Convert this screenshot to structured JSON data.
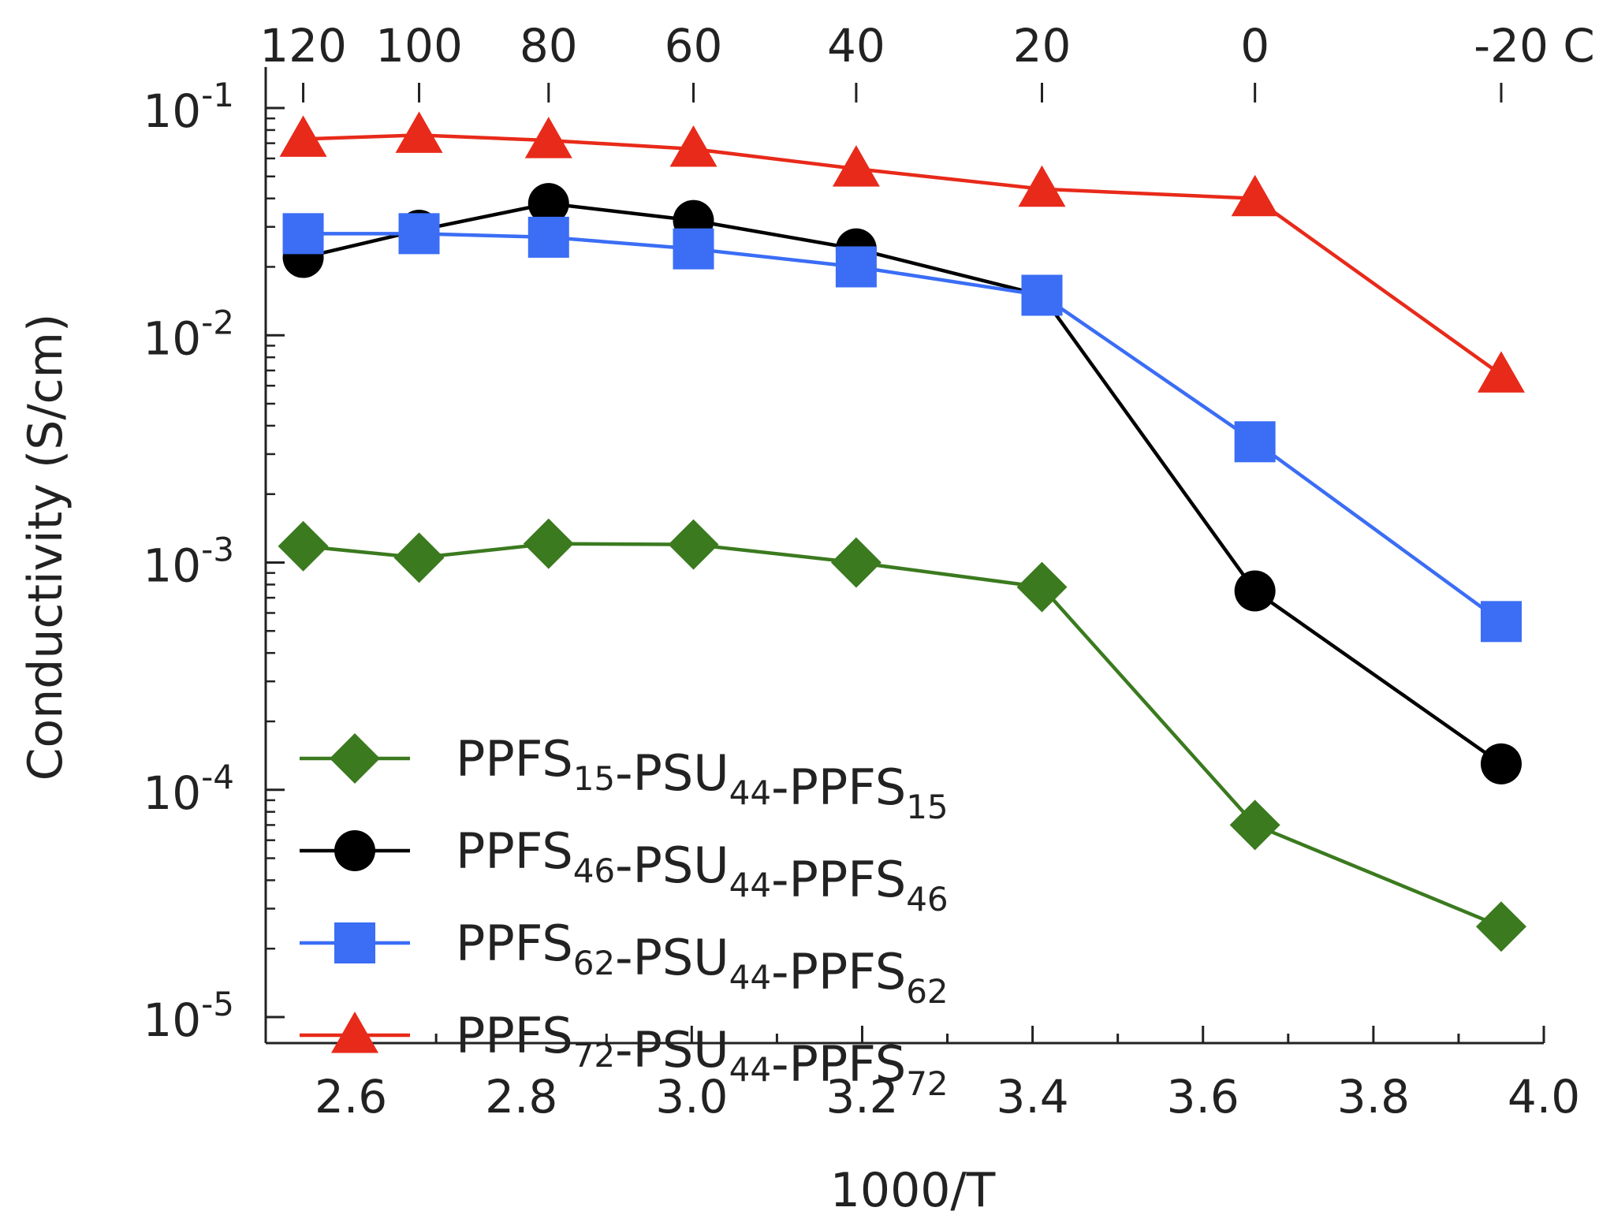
{
  "chart_data": {
    "type": "line",
    "xlabel": "1000/T",
    "ylabel": "Conductivity (S/cm)",
    "y_scale": "log",
    "xlim": [
      2.5,
      4.0
    ],
    "ylim": [
      1e-05,
      0.1
    ],
    "x_ticks": [
      "2.6",
      "2.8",
      "3.0",
      "3.2",
      "3.4",
      "3.6",
      "3.8",
      "4.0"
    ],
    "y_ticks": [
      {
        "base": "10",
        "exp": "-1",
        "value": 0.1
      },
      {
        "base": "10",
        "exp": "-2",
        "value": 0.01
      },
      {
        "base": "10",
        "exp": "-3",
        "value": 0.001
      },
      {
        "base": "10",
        "exp": "-4",
        "value": 0.0001
      },
      {
        "base": "10",
        "exp": "-5",
        "value": 1e-05
      }
    ],
    "top_ticks": [
      {
        "label": "120",
        "x": 2.544
      },
      {
        "label": "100",
        "x": 2.68
      },
      {
        "label": "80",
        "x": 2.832
      },
      {
        "label": "60",
        "x": 3.002
      },
      {
        "label": "40",
        "x": 3.193
      },
      {
        "label": "20",
        "x": 3.411
      },
      {
        "label": "0",
        "x": 3.661
      },
      {
        "label": "-20 C",
        "x": 3.95
      }
    ],
    "grid": false,
    "legend_position": "bottom-left",
    "series": [
      {
        "name": "PPFS15-PSU44-PPFS15",
        "label_parts": [
          [
            "PPFS",
            "15"
          ],
          [
            "-PSU",
            "44"
          ],
          [
            "-PPFS",
            "15"
          ]
        ],
        "color": "#3b7a1f",
        "marker": "diamond",
        "x": [
          2.544,
          2.68,
          2.832,
          3.002,
          3.193,
          3.411,
          3.661,
          3.95
        ],
        "y": [
          0.00118,
          0.00105,
          0.00121,
          0.0012,
          0.001,
          0.00078,
          7e-05,
          2.5e-05
        ]
      },
      {
        "name": "PPFS46-PSU44-PPFS46",
        "label_parts": [
          [
            "PPFS",
            "46"
          ],
          [
            "-PSU",
            "44"
          ],
          [
            "-PPFS",
            "46"
          ]
        ],
        "color": "#000000",
        "marker": "circle",
        "x": [
          2.544,
          2.68,
          2.832,
          3.002,
          3.193,
          3.411,
          3.661,
          3.95
        ],
        "y": [
          0.022,
          0.029,
          0.038,
          0.032,
          0.024,
          0.015,
          0.00075,
          0.00013
        ]
      },
      {
        "name": "PPFS62-PSU44-PPFS62",
        "label_parts": [
          [
            "PPFS",
            "62"
          ],
          [
            "-PSU",
            "44"
          ],
          [
            "-PPFS",
            "62"
          ]
        ],
        "color": "#3b6df5",
        "marker": "square",
        "x": [
          2.544,
          2.68,
          2.832,
          3.002,
          3.193,
          3.411,
          3.661,
          3.95
        ],
        "y": [
          0.028,
          0.028,
          0.027,
          0.024,
          0.02,
          0.015,
          0.0034,
          0.00055
        ]
      },
      {
        "name": "PPFS72-PSU44-PPFS72",
        "label_parts": [
          [
            "PPFS",
            "72"
          ],
          [
            "-PSU",
            "44"
          ],
          [
            "-PPFS",
            "72"
          ]
        ],
        "color": "#e82a1a",
        "marker": "triangle",
        "x": [
          2.544,
          2.68,
          2.832,
          3.002,
          3.193,
          3.411,
          3.661,
          3.95
        ],
        "y": [
          0.073,
          0.076,
          0.072,
          0.066,
          0.054,
          0.044,
          0.04,
          0.0067
        ]
      }
    ]
  }
}
